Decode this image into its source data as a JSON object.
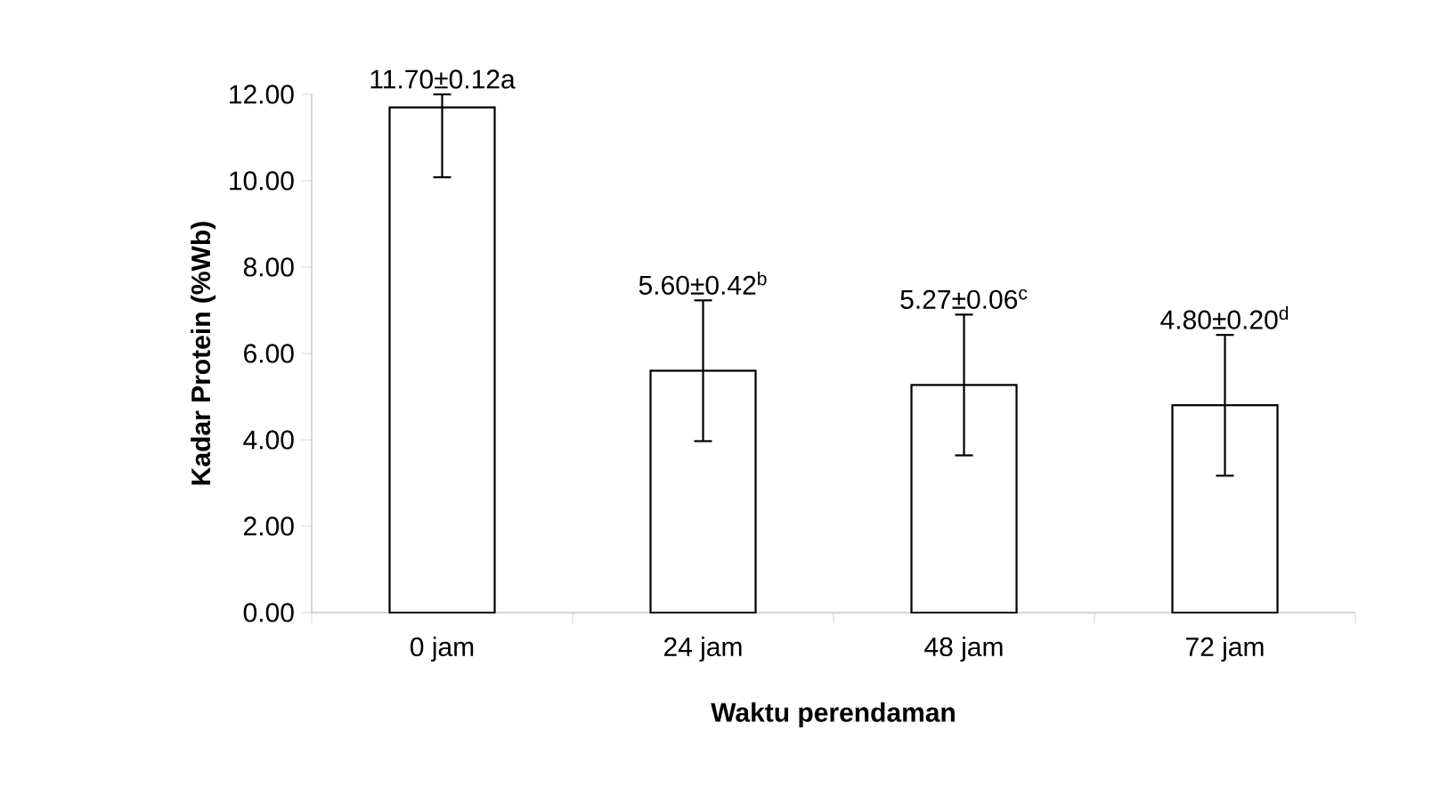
{
  "chart_data": {
    "type": "bar",
    "xlabel": "Waktu perendaman",
    "ylabel": "Kadar Protein (%Wb)",
    "categories": [
      "0 jam",
      "24 jam",
      "48 jam",
      "72 jam"
    ],
    "values": [
      11.7,
      5.6,
      5.27,
      4.8
    ],
    "errors": [
      [
        10.08,
        12.0
      ],
      1.63,
      1.63,
      1.63
    ],
    "value_labels": [
      "11.70±0.12a",
      "5.60±0.42$^{b}$",
      "5.27±0.06$^{c}$",
      "4.80±0.20$^{d}$"
    ],
    "color": "#ffffff",
    "ylim": [
      0,
      12
    ],
    "yticks": [
      {
        "value": 0,
        "label": "0.00"
      },
      {
        "value": 2,
        "label": "2.00"
      },
      {
        "value": 4,
        "label": "4.00"
      },
      {
        "value": 6,
        "label": "6.00"
      },
      {
        "value": 8,
        "label": "8.00"
      },
      {
        "value": 10,
        "label": "10.00"
      },
      {
        "value": 12,
        "label": "12.00"
      }
    ],
    "grid": false
  }
}
